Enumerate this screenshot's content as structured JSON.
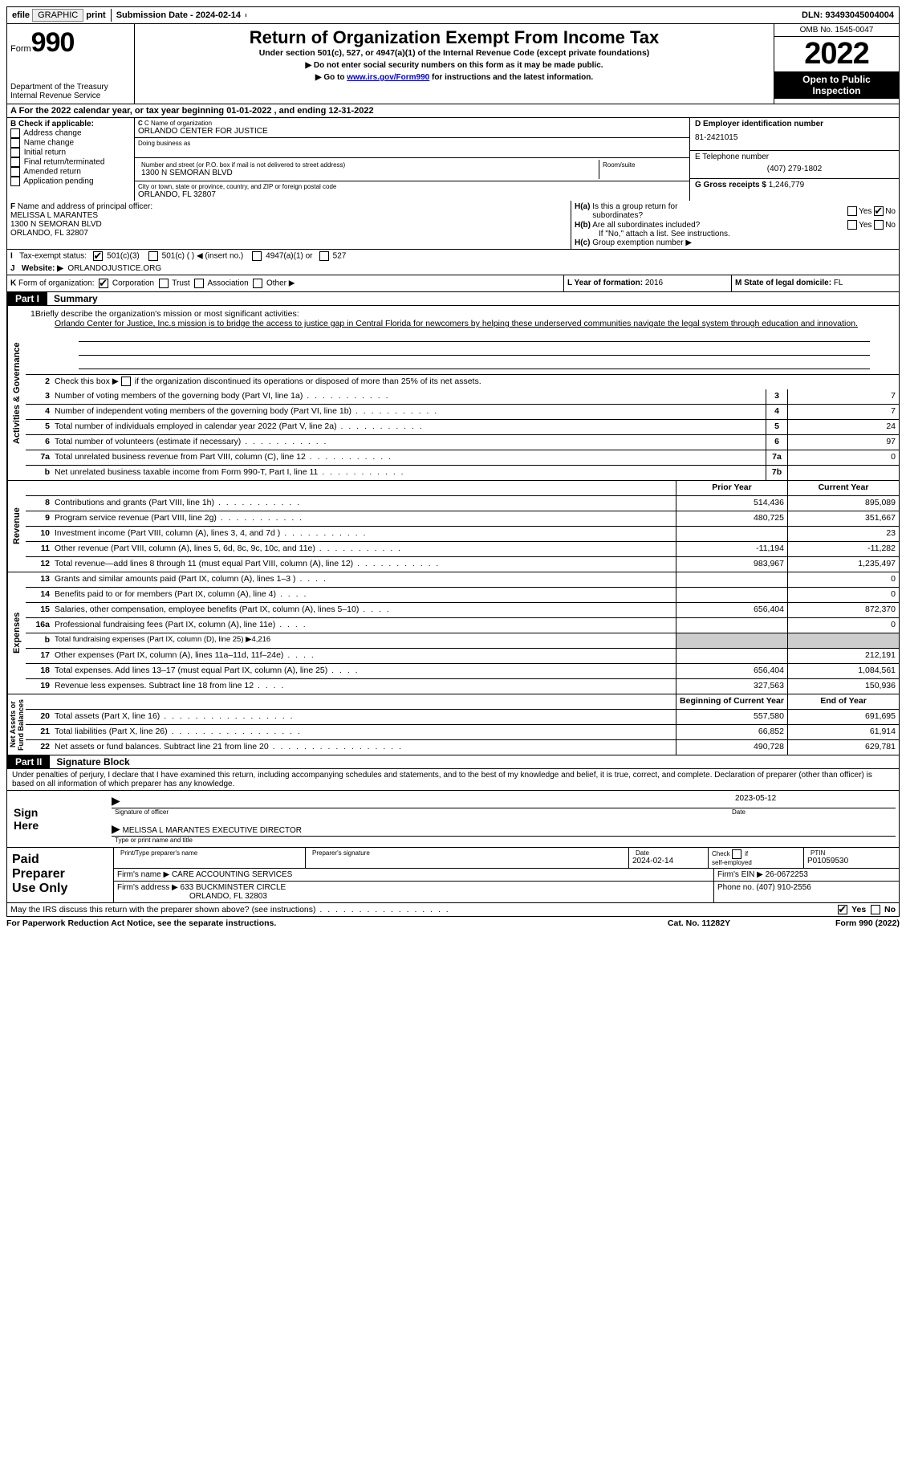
{
  "top": {
    "efile": "efile GRAPHIC print",
    "sub_label": "Submission Date - ",
    "sub_date": "2024-02-14",
    "dln_label": "DLN: ",
    "dln": "93493045004004"
  },
  "header": {
    "form": "Form",
    "num": "990",
    "dept": "Department of the Treasury\nInternal Revenue Service",
    "title": "Return of Organization Exempt From Income Tax",
    "sub1": "Under section 501(c), 527, or 4947(a)(1) of the Internal Revenue Code (except private foundations)",
    "sub2": "▶ Do not enter social security numbers on this form as it may be made public.",
    "sub3_pre": "▶ Go to ",
    "sub3_link": "www.irs.gov/Form990",
    "sub3_post": " for instructions and the latest information.",
    "omb": "OMB No. 1545-0047",
    "year": "2022",
    "open": "Open to Public Inspection"
  },
  "rowA": {
    "text": "A For the 2022 calendar year, or tax year beginning 01-01-2022   , and ending 12-31-2022"
  },
  "B": {
    "label": "B Check if applicable:",
    "opts": [
      "Address change",
      "Name change",
      "Initial return",
      "Final return/terminated",
      "Amended return",
      "Application pending"
    ]
  },
  "C": {
    "name_lbl": "C Name of organization",
    "name": "ORLANDO CENTER FOR JUSTICE",
    "dba_lbl": "Doing business as",
    "dba": "",
    "street_lbl": "Number and street (or P.O. box if mail is not delivered to street address)",
    "room_lbl": "Room/suite",
    "street": "1300 N SEMORAN BLVD",
    "city_lbl": "City or town, state or province, country, and ZIP or foreign postal code",
    "city": "ORLANDO, FL  32807"
  },
  "D": {
    "ein_lbl": "D Employer identification number",
    "ein": "81-2421015",
    "tel_lbl": "E Telephone number",
    "tel": "(407) 279-1802",
    "gross_lbl": "G Gross receipts $ ",
    "gross": "1,246,779"
  },
  "F": {
    "label": "F  Name and address of principal officer:",
    "name": "MELISSA L MARANTES",
    "street": "1300 N SEMORAN BLVD",
    "city": "ORLANDO, FL  32807"
  },
  "H": {
    "a": "H(a)  Is this a group return for subordinates?",
    "b": "H(b)  Are all subordinates included?",
    "bnote": "If \"No,\" attach a list. See instructions.",
    "c": "H(c)  Group exemption number ▶",
    "yes": "Yes",
    "no": "No"
  },
  "I": {
    "label": "I    Tax-exempt status:",
    "c3": "501(c)(3)",
    "c": "501(c) (  ) ◀ (insert no.)",
    "a4947": "4947(a)(1) or",
    "s527": "527"
  },
  "J": {
    "label": "J   Website: ▶",
    "val": "ORLANDOJUSTICE.ORG"
  },
  "K": {
    "label": "K Form of organization:",
    "corp": "Corporation",
    "trust": "Trust",
    "assoc": "Association",
    "other": "Other ▶"
  },
  "L": {
    "label": "L Year of formation: ",
    "val": "2016"
  },
  "M": {
    "label": "M State of legal domicile: ",
    "val": "FL"
  },
  "partI": {
    "num": "Part I",
    "title": "Summary",
    "q1_label": "Briefly describe the organization's mission or most significant activities:",
    "q1_text": "Orlando Center for Justice, Inc.s mission is to bridge the access to justice gap in Central Florida for newcomers by helping these underserved communities navigate the legal system through education and innovation.",
    "q2": "Check this box ▶          if the organization discontinued its operations or disposed of more than 25% of its net assets.",
    "vtab_ag": "Activities & Governance",
    "vtab_rev": "Revenue",
    "vtab_exp": "Expenses",
    "vtab_net": "Net Assets or Fund Balances",
    "rows_ag": [
      {
        "n": "3",
        "d": "Number of voting members of the governing body (Part VI, line 1a)",
        "box": "3",
        "v": "7"
      },
      {
        "n": "4",
        "d": "Number of independent voting members of the governing body (Part VI, line 1b)",
        "box": "4",
        "v": "7"
      },
      {
        "n": "5",
        "d": "Total number of individuals employed in calendar year 2022 (Part V, line 2a)",
        "box": "5",
        "v": "24"
      },
      {
        "n": "6",
        "d": "Total number of volunteers (estimate if necessary)",
        "box": "6",
        "v": "97"
      },
      {
        "n": "7a",
        "d": "Total unrelated business revenue from Part VIII, column (C), line 12",
        "box": "7a",
        "v": "0"
      },
      {
        "n": "b",
        "d": "Net unrelated business taxable income from Form 990-T, Part I, line 11",
        "box": "7b",
        "v": ""
      }
    ],
    "hdr_prior": "Prior Year",
    "hdr_curr": "Current Year",
    "rows_rev": [
      {
        "n": "8",
        "d": "Contributions and grants (Part VIII, line 1h)",
        "p": "514,436",
        "c": "895,089"
      },
      {
        "n": "9",
        "d": "Program service revenue (Part VIII, line 2g)",
        "p": "480,725",
        "c": "351,667"
      },
      {
        "n": "10",
        "d": "Investment income (Part VIII, column (A), lines 3, 4, and 7d )",
        "p": "",
        "c": "23"
      },
      {
        "n": "11",
        "d": "Other revenue (Part VIII, column (A), lines 5, 6d, 8c, 9c, 10c, and 11e)",
        "p": "-11,194",
        "c": "-11,282"
      },
      {
        "n": "12",
        "d": "Total revenue—add lines 8 through 11 (must equal Part VIII, column (A), line 12)",
        "p": "983,967",
        "c": "1,235,497"
      }
    ],
    "rows_exp": [
      {
        "n": "13",
        "d": "Grants and similar amounts paid (Part IX, column (A), lines 1–3 )",
        "p": "",
        "c": "0"
      },
      {
        "n": "14",
        "d": "Benefits paid to or for members (Part IX, column (A), line 4)",
        "p": "",
        "c": "0"
      },
      {
        "n": "15",
        "d": "Salaries, other compensation, employee benefits (Part IX, column (A), lines 5–10)",
        "p": "656,404",
        "c": "872,370"
      },
      {
        "n": "16a",
        "d": "Professional fundraising fees (Part IX, column (A), line 11e)",
        "p": "",
        "c": "0"
      },
      {
        "n": "b",
        "d": "Total fundraising expenses (Part IX, column (D), line 25) ▶4,216",
        "grey": true
      },
      {
        "n": "17",
        "d": "Other expenses (Part IX, column (A), lines 11a–11d, 11f–24e)",
        "p": "",
        "c": "212,191"
      },
      {
        "n": "18",
        "d": "Total expenses. Add lines 13–17 (must equal Part IX, column (A), line 25)",
        "p": "656,404",
        "c": "1,084,561"
      },
      {
        "n": "19",
        "d": "Revenue less expenses. Subtract line 18 from line 12",
        "p": "327,563",
        "c": "150,936"
      }
    ],
    "hdr_beg": "Beginning of Current Year",
    "hdr_end": "End of Year",
    "rows_net": [
      {
        "n": "20",
        "d": "Total assets (Part X, line 16)",
        "p": "557,580",
        "c": "691,695"
      },
      {
        "n": "21",
        "d": "Total liabilities (Part X, line 26)",
        "p": "66,852",
        "c": "61,914"
      },
      {
        "n": "22",
        "d": "Net assets or fund balances. Subtract line 21 from line 20",
        "p": "490,728",
        "c": "629,781"
      }
    ]
  },
  "partII": {
    "num": "Part II",
    "title": "Signature Block",
    "penalty": "Under penalties of perjury, I declare that I have examined this return, including accompanying schedules and statements, and to the best of my knowledge and belief, it is true, correct, and complete. Declaration of preparer (other than officer) is based on all information of which preparer has any knowledge.",
    "sign_here": "Sign Here",
    "sig_officer": "Signature of officer",
    "sig_date_lbl": "Date",
    "sig_date": "2023-05-12",
    "officer_name": "MELISSA L MARANTES  EXECUTIVE DIRECTOR",
    "type_print": "Type or print name and title",
    "paid": "Paid Preparer Use Only",
    "prep_name_lbl": "Print/Type preparer's name",
    "prep_sig_lbl": "Preparer's signature",
    "prep_date_lbl": "Date",
    "prep_date": "2024-02-14",
    "self_emp": "Check          if self-employed",
    "ptin_lbl": "PTIN",
    "ptin": "P01059530",
    "firm_name_lbl": "Firm's name    ▶",
    "firm_name": "CARE ACCOUNTING SERVICES",
    "firm_ein_lbl": "Firm's EIN ▶",
    "firm_ein": "26-0672253",
    "firm_addr_lbl": "Firm's address ▶",
    "firm_addr1": "633 BUCKMINSTER CIRCLE",
    "firm_addr2": "ORLANDO, FL  32803",
    "phone_lbl": "Phone no. ",
    "phone": "(407) 910-2556"
  },
  "bottom": {
    "q": "May the IRS discuss this return with the preparer shown above? (see instructions)",
    "yes": "Yes",
    "no": "No"
  },
  "footer": {
    "left": "For Paperwork Reduction Act Notice, see the separate instructions.",
    "mid": "Cat. No. 11282Y",
    "right": "Form 990 (2022)"
  },
  "colors": {
    "black": "#000000",
    "grey": "#cccccc",
    "link": "#0000cc"
  }
}
